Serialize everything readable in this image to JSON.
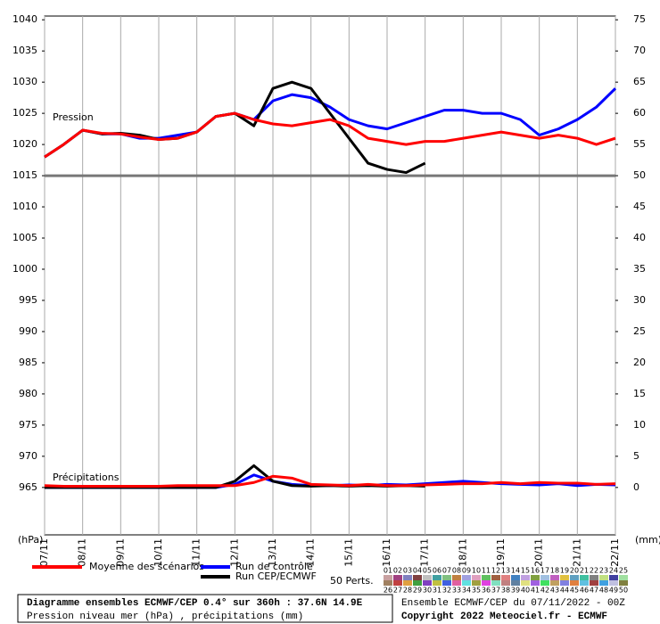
{
  "chart_data": {
    "type": "line",
    "x": [
      0,
      12,
      24,
      36,
      48,
      60,
      72,
      84,
      96,
      108,
      120,
      132,
      144,
      156,
      168,
      180,
      192,
      204,
      216,
      228,
      240,
      252,
      264,
      276,
      288,
      300,
      312,
      324,
      336,
      348,
      360
    ],
    "xlim": [
      0,
      360
    ],
    "xticks": [
      {
        "value": 0,
        "label": "07/11"
      },
      {
        "value": 24,
        "label": "08/11"
      },
      {
        "value": 48,
        "label": "09/11"
      },
      {
        "value": 72,
        "label": "10/11"
      },
      {
        "value": 96,
        "label": "11/11"
      },
      {
        "value": 120,
        "label": "12/11"
      },
      {
        "value": 144,
        "label": "13/11"
      },
      {
        "value": 168,
        "label": "14/11"
      },
      {
        "value": 192,
        "label": "15/11"
      },
      {
        "value": 216,
        "label": "16/11"
      },
      {
        "value": 240,
        "label": "17/11"
      },
      {
        "value": 264,
        "label": "18/11"
      },
      {
        "value": 288,
        "label": "19/11"
      },
      {
        "value": 312,
        "label": "20/11"
      },
      {
        "value": 336,
        "label": "21/11"
      },
      {
        "value": 360,
        "label": "22/11"
      }
    ],
    "ylim": [
      957.4,
      1040.6
    ],
    "yticks": [
      965,
      970,
      975,
      980,
      985,
      990,
      995,
      1000,
      1005,
      1010,
      1015,
      1020,
      1025,
      1030,
      1035,
      1040
    ],
    "y2lim": [
      -7.6,
      75.6
    ],
    "y2ticks": [
      0,
      5,
      10,
      15,
      20,
      25,
      30,
      35,
      40,
      45,
      50,
      55,
      60,
      65,
      70,
      75
    ],
    "ylabel": "(hPa)",
    "y2label": "(mm)",
    "reference_line": 1015,
    "annotations": [
      "Pression",
      "Précipitations"
    ],
    "grid": true,
    "series": [
      {
        "name": "Run de contrôle",
        "color": "#0000ff",
        "values": [
          1018,
          1020,
          1022.3,
          1021.7,
          1021.7,
          1021,
          1021,
          1021.5,
          1022,
          1024.5,
          1025,
          1024,
          1027,
          1028,
          1027.5,
          1026,
          1024,
          1023,
          1022.5,
          1023.5,
          1024.5,
          1025.5,
          1025.5,
          1025,
          1025,
          1024,
          1021.5,
          1022.5,
          1024,
          1026,
          1029
        ]
      },
      {
        "name": "Run CEP/ECMWF",
        "color": "#000000",
        "values": [
          1018,
          1020,
          1022.3,
          1021.7,
          1021.8,
          1021.5,
          1020.8,
          1021,
          1022,
          1024.5,
          1025,
          1023,
          1029,
          1030,
          1029,
          1025,
          1021,
          1017,
          1016,
          1015.5,
          1017,
          null,
          null,
          null,
          null,
          null,
          null,
          null,
          null,
          null,
          null
        ]
      },
      {
        "name": "Moyenne des scénarios",
        "color": "#ff0000",
        "values": [
          1018,
          1020,
          1022.3,
          1021.8,
          1021.7,
          1021.2,
          1020.8,
          1021,
          1022,
          1024.5,
          1025,
          1024,
          1023.3,
          1023,
          1023.5,
          1024,
          1023,
          1021,
          1020.5,
          1020,
          1020.5,
          1020.5,
          1021,
          1021.5,
          1022,
          1021.5,
          1021,
          1021.5,
          1021,
          1020,
          1021
        ]
      },
      {
        "axis": "y2",
        "color": "#0000ff",
        "values": [
          0,
          0,
          0,
          0,
          0,
          0,
          0,
          0,
          0,
          0,
          0.5,
          2,
          1,
          0.5,
          0.3,
          0.3,
          0.4,
          0.3,
          0.5,
          0.4,
          0.6,
          0.8,
          1,
          0.8,
          0.6,
          0.5,
          0.4,
          0.6,
          0.3,
          0.5,
          0.4
        ]
      },
      {
        "axis": "y2",
        "color": "#000000",
        "values": [
          0,
          0,
          0,
          0,
          0,
          0,
          0,
          0,
          0,
          0,
          1,
          3.5,
          1,
          0.3,
          0.2,
          0.3,
          0.2,
          0.3,
          0.2,
          0.3,
          0.2,
          null,
          null,
          null,
          null,
          null,
          null,
          null,
          null,
          null,
          null
        ]
      },
      {
        "axis": "y2",
        "color": "#ff0000",
        "values": [
          0.3,
          0.2,
          0.2,
          0.2,
          0.2,
          0.2,
          0.2,
          0.3,
          0.3,
          0.3,
          0.3,
          0.8,
          1.8,
          1.5,
          0.5,
          0.4,
          0.3,
          0.5,
          0.3,
          0.3,
          0.4,
          0.5,
          0.6,
          0.6,
          0.8,
          0.6,
          0.8,
          0.7,
          0.7,
          0.5,
          0.6
        ]
      }
    ]
  },
  "legend": {
    "perturbations_label": "50 Perts.",
    "perturbations": [
      {
        "label": "01",
        "color": "#c8a0a0"
      },
      {
        "label": "02",
        "color": "#a04080"
      },
      {
        "label": "03",
        "color": "#8080c0"
      },
      {
        "label": "04",
        "color": "#804040"
      },
      {
        "label": "05",
        "color": "#c0c0c0"
      },
      {
        "label": "06",
        "color": "#40a0a0"
      },
      {
        "label": "07",
        "color": "#80c080"
      },
      {
        "label": "08",
        "color": "#c08040"
      },
      {
        "label": "09",
        "color": "#a0a0e0"
      },
      {
        "label": "10",
        "color": "#e0a0c0"
      },
      {
        "label": "11",
        "color": "#60c060"
      },
      {
        "label": "12",
        "color": "#a06040"
      },
      {
        "label": "13",
        "color": "#e08080"
      },
      {
        "label": "14",
        "color": "#4080c0"
      },
      {
        "label": "15",
        "color": "#c0a0e0"
      },
      {
        "label": "16",
        "color": "#80a040"
      },
      {
        "label": "17",
        "color": "#a0c0e0"
      },
      {
        "label": "18",
        "color": "#c060c0"
      },
      {
        "label": "19",
        "color": "#e0c040"
      },
      {
        "label": "20",
        "color": "#60a0c0"
      },
      {
        "label": "21",
        "color": "#40c0a0"
      },
      {
        "label": "22",
        "color": "#808080"
      },
      {
        "label": "23",
        "color": "#c0e080"
      },
      {
        "label": "24",
        "color": "#4040a0"
      },
      {
        "label": "25",
        "color": "#a0e0a0"
      },
      {
        "label": "26",
        "color": "#a08060"
      },
      {
        "label": "27",
        "color": "#c04040"
      },
      {
        "label": "28",
        "color": "#e0a040"
      },
      {
        "label": "29",
        "color": "#40a040"
      },
      {
        "label": "30",
        "color": "#8040c0"
      },
      {
        "label": "31",
        "color": "#c0c040"
      },
      {
        "label": "32",
        "color": "#4060e0"
      },
      {
        "label": "33",
        "color": "#e060a0"
      },
      {
        "label": "34",
        "color": "#60e0e0"
      },
      {
        "label": "35",
        "color": "#a0a040"
      },
      {
        "label": "36",
        "color": "#e040e0"
      },
      {
        "label": "37",
        "color": "#80e0c0"
      },
      {
        "label": "38",
        "color": "#c08080"
      },
      {
        "label": "39",
        "color": "#6080a0"
      },
      {
        "label": "40",
        "color": "#e0e080"
      },
      {
        "label": "41",
        "color": "#a060e0"
      },
      {
        "label": "42",
        "color": "#40e060"
      },
      {
        "label": "43",
        "color": "#c0a060"
      },
      {
        "label": "44",
        "color": "#8080e0"
      },
      {
        "label": "45",
        "color": "#e08040"
      },
      {
        "label": "46",
        "color": "#60c0e0"
      },
      {
        "label": "47",
        "color": "#a04040"
      },
      {
        "label": "48",
        "color": "#40a0e0"
      },
      {
        "label": "49",
        "color": "#c0c0e0"
      },
      {
        "label": "50",
        "color": "#808040"
      }
    ]
  },
  "footer": {
    "title": "Diagramme ensembles ECMWF/CEP 0.4° sur 360h : 37.6N 14.9E",
    "subtitle": "Pression niveau mer (hPa) , précipitations (mm)",
    "run": "Ensemble ECMWF/CEP du 07/11/2022 - 00Z",
    "copyright": "Copyright 2022 Meteociel.fr - ECMWF"
  }
}
